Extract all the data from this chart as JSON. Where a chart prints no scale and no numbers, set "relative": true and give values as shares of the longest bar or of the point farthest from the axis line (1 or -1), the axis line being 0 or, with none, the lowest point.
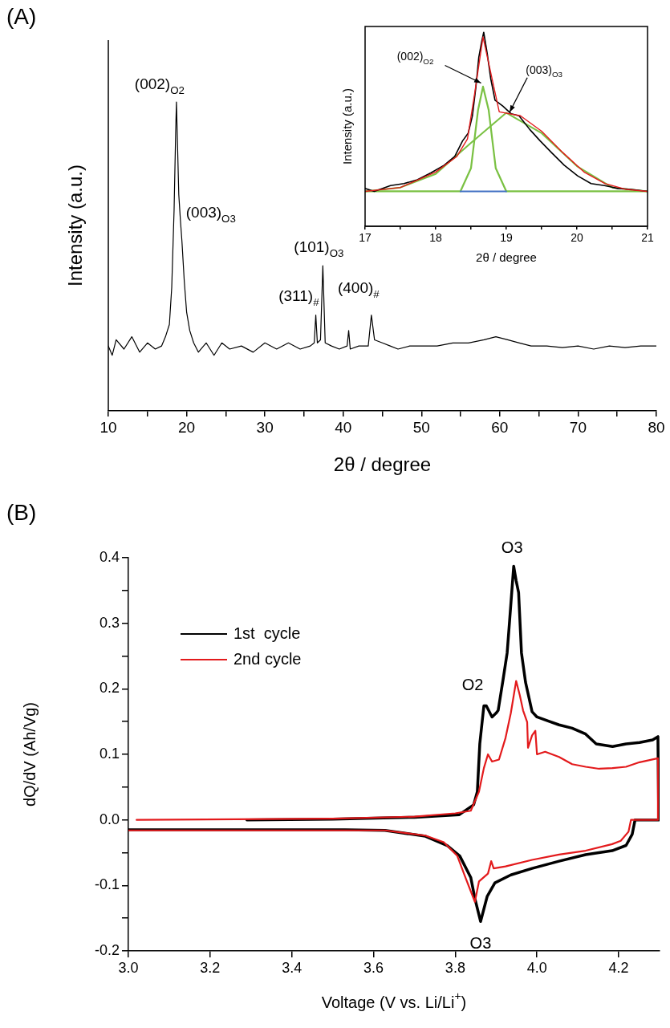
{
  "chart_data": [
    {
      "type": "line",
      "relative": true,
      "title": "(A)",
      "xlabel": "2θ / degree",
      "ylabel": "Intensity (a.u.)",
      "xlim": [
        10,
        80
      ],
      "xticks": [
        10,
        {
          "value": 15,
          "label": null
        },
        20,
        {
          "value": 25,
          "label": null
        },
        30,
        {
          "value": 35,
          "label": null
        },
        40,
        {
          "value": 45,
          "label": null
        },
        50,
        {
          "value": 55,
          "label": null
        },
        60,
        {
          "value": 65,
          "label": null
        },
        70,
        {
          "value": 75,
          "label": null
        },
        80
      ],
      "x": [
        10,
        10.5,
        11,
        12,
        13,
        14,
        15,
        16,
        16.8,
        17.3,
        17.8,
        18.1,
        18.4,
        18.6,
        18.7,
        18.85,
        19.0,
        19.2,
        19.4,
        19.7,
        20.0,
        20.4,
        20.9,
        21.5,
        22.5,
        23.5,
        24.5,
        25.5,
        27,
        28.5,
        30,
        31.5,
        33,
        34.5,
        35.8,
        36.3,
        36.5,
        36.7,
        37.1,
        37.4,
        37.7,
        38.5,
        39.5,
        40.5,
        40.7,
        40.9,
        42,
        43.2,
        43.6,
        44,
        45,
        46,
        47,
        48.5,
        50,
        52,
        54,
        56,
        58,
        59.5,
        61,
        62.5,
        64,
        66,
        68,
        70,
        72,
        74,
        76,
        78,
        80
      ],
      "series": [
        {
          "color": "#000000",
          "values": [
            0.21,
            0.18,
            0.23,
            0.2,
            0.24,
            0.19,
            0.22,
            0.2,
            0.21,
            0.24,
            0.28,
            0.4,
            0.65,
            0.9,
            1.0,
            0.85,
            0.7,
            0.62,
            0.55,
            0.42,
            0.32,
            0.26,
            0.22,
            0.19,
            0.22,
            0.18,
            0.22,
            0.2,
            0.21,
            0.19,
            0.22,
            0.2,
            0.22,
            0.2,
            0.21,
            0.22,
            0.31,
            0.22,
            0.23,
            0.47,
            0.22,
            0.21,
            0.2,
            0.21,
            0.26,
            0.2,
            0.21,
            0.21,
            0.31,
            0.23,
            0.22,
            0.21,
            0.2,
            0.21,
            0.21,
            0.21,
            0.22,
            0.22,
            0.23,
            0.24,
            0.23,
            0.22,
            0.21,
            0.21,
            0.205,
            0.21,
            0.2,
            0.21,
            0.205,
            0.21,
            0.21
          ]
        }
      ],
      "annotations": [
        {
          "text": "(002)$_{O2}$",
          "x": 18.7,
          "y": 1.0
        },
        {
          "text": "(003)$_{O3}$",
          "x": 19.3,
          "y": 0.6
        },
        {
          "text": "(101)$_{O3}$",
          "x": 37.4,
          "y": 0.47
        },
        {
          "text": "(311)$_{#}$",
          "x": 36.5,
          "y": 0.31
        },
        {
          "text": "(400)$_{#}$",
          "x": 43.6,
          "y": 0.31
        }
      ]
    },
    {
      "type": "line",
      "relative": true,
      "xlabel": "2θ / degree",
      "ylabel": "Intensity (a.u.)",
      "xlim": [
        17,
        21
      ],
      "xticks": [
        17,
        {
          "value": 17.5,
          "label": null
        },
        18,
        {
          "value": 18.5,
          "label": null
        },
        19,
        {
          "value": 19.5,
          "label": null
        },
        20,
        {
          "value": 20.5,
          "label": null
        },
        21
      ],
      "series": [
        {
          "color": "#7ac143",
          "x": [
            17,
            18.35,
            18.5,
            18.6,
            18.67,
            18.75,
            18.85,
            19.0,
            21
          ],
          "values": [
            0.18,
            0.18,
            0.3,
            0.6,
            0.72,
            0.6,
            0.3,
            0.18,
            0.18
          ]
        },
        {
          "color": "#7ac143",
          "x": [
            17,
            17.5,
            18,
            18.5,
            19,
            19.5,
            20,
            20.5,
            21
          ],
          "values": [
            0.18,
            0.2,
            0.27,
            0.43,
            0.585,
            0.48,
            0.31,
            0.2,
            0.18
          ]
        },
        {
          "color": "#4472c4",
          "x": [
            18.35,
            19.0
          ],
          "values": [
            0.18,
            0.18
          ]
        },
        {
          "color": "#000000",
          "x": [
            17.0,
            17.13,
            17.36,
            17.55,
            17.74,
            17.93,
            18.12,
            18.27,
            18.38,
            18.46,
            18.52,
            18.57,
            18.61,
            18.65,
            18.68,
            18.73,
            18.78,
            18.84,
            18.95,
            19.07,
            19.18,
            19.33,
            19.48,
            19.64,
            19.82,
            20.01,
            20.2,
            20.39,
            20.58,
            20.77,
            21.0
          ],
          "values": [
            0.195,
            0.18,
            0.21,
            0.22,
            0.24,
            0.275,
            0.315,
            0.36,
            0.44,
            0.48,
            0.57,
            0.72,
            0.87,
            0.95,
            1.0,
            0.89,
            0.76,
            0.65,
            0.62,
            0.58,
            0.57,
            0.5,
            0.44,
            0.38,
            0.315,
            0.26,
            0.22,
            0.21,
            0.195,
            0.19,
            0.18
          ]
        },
        {
          "color": "#e31a1c",
          "x": [
            17,
            17.5,
            18,
            18.3,
            18.45,
            18.55,
            18.67,
            18.9,
            19.2,
            19.5,
            19.8,
            20.1,
            20.4,
            20.7,
            21
          ],
          "values": [
            0.18,
            0.2,
            0.28,
            0.36,
            0.45,
            0.68,
            0.976,
            0.59,
            0.57,
            0.49,
            0.38,
            0.28,
            0.22,
            0.19,
            0.18
          ]
        }
      ],
      "annotations": [
        {
          "text": "(002)$_{O2}$",
          "x": 18.62,
          "y": 0.73
        },
        {
          "text": "(003)$_{O3}$",
          "x": 19.07,
          "y": 0.58
        }
      ]
    },
    {
      "type": "line",
      "title": "(B)",
      "xlabel": "Voltage (V vs. Li/Li$^{+}$)",
      "ylabel": "dQ/dV (Ah/Vg)",
      "xlim": [
        3.0,
        4.3
      ],
      "ylim": [
        -0.2,
        0.4
      ],
      "xticks": [
        {
          "value": 3.0,
          "label": "3.0"
        },
        {
          "value": 3.2,
          "label": "3.2"
        },
        {
          "value": 3.4,
          "label": "3.4"
        },
        {
          "value": 3.6,
          "label": "3.6"
        },
        {
          "value": 3.8,
          "label": "3.8"
        },
        {
          "value": 4.0,
          "label": "4.0"
        },
        {
          "value": 4.2,
          "label": "4.2"
        }
      ],
      "yticks": [
        {
          "value": -0.2,
          "label": "-0.2"
        },
        {
          "value": -0.15,
          "label": null
        },
        {
          "value": -0.1,
          "label": "-0.1"
        },
        {
          "value": -0.05,
          "label": null
        },
        {
          "value": 0,
          "label": "0.0"
        },
        {
          "value": 0.05,
          "label": null
        },
        {
          "value": 0.1,
          "label": "0.1"
        },
        {
          "value": 0.15,
          "label": null
        },
        {
          "value": 0.2,
          "label": "0.2"
        },
        {
          "value": 0.25,
          "label": null
        },
        {
          "value": 0.3,
          "label": "0.3"
        },
        {
          "value": 0.35,
          "label": null
        },
        {
          "value": 0.4,
          "label": "0.4"
        }
      ],
      "legend": "top left",
      "series": [
        {
          "name": "1st  cycle",
          "color": "#000000",
          "x": [
            3.29,
            3.5,
            3.7,
            3.81,
            3.845,
            3.854,
            3.86,
            3.87,
            3.876,
            3.89,
            3.9,
            3.905,
            3.917,
            3.927,
            3.933,
            3.943,
            3.949,
            3.955,
            3.962,
            3.972,
            3.988,
            4.0,
            4.027,
            4.054,
            4.086,
            4.119,
            4.145,
            4.185,
            4.218,
            4.251,
            4.283,
            4.296,
            4.298,
            4.24,
            4.233,
            4.218,
            4.184,
            4.119,
            4.054,
            3.988,
            3.936,
            3.897,
            3.878,
            3.862,
            3.848,
            3.838,
            3.811,
            3.78,
            3.727,
            3.628,
            3.53,
            3.0
          ],
          "values": [
            0.0,
            0.001,
            0.004,
            0.008,
            0.023,
            0.043,
            0.116,
            0.174,
            0.174,
            0.157,
            0.163,
            0.167,
            0.214,
            0.255,
            0.304,
            0.387,
            0.365,
            0.347,
            0.255,
            0.21,
            0.165,
            0.157,
            0.151,
            0.145,
            0.14,
            0.131,
            0.116,
            0.112,
            0.116,
            0.118,
            0.122,
            0.127,
            0.0,
            0.0,
            -0.022,
            -0.039,
            -0.047,
            -0.053,
            -0.063,
            -0.074,
            -0.084,
            -0.096,
            -0.117,
            -0.155,
            -0.12,
            -0.088,
            -0.055,
            -0.039,
            -0.025,
            -0.016,
            -0.015,
            -0.015
          ]
        },
        {
          "name": "2nd cycle",
          "color": "#e31a1c",
          "x": [
            3.02,
            3.5,
            3.7,
            3.8,
            3.838,
            3.858,
            3.87,
            3.88,
            3.89,
            3.907,
            3.923,
            3.936,
            3.949,
            3.958,
            3.966,
            3.976,
            3.978,
            3.988,
            3.996,
            4.0,
            4.02,
            4.054,
            4.086,
            4.119,
            4.152,
            4.185,
            4.218,
            4.251,
            4.296,
            4.296,
            4.283,
            4.23,
            4.224,
            4.205,
            4.184,
            4.119,
            4.054,
            3.988,
            3.923,
            3.894,
            3.888,
            3.88,
            3.858,
            3.848,
            3.825,
            3.805,
            3.772,
            3.727,
            3.628,
            3.0
          ],
          "values": [
            0.0,
            0.002,
            0.005,
            0.01,
            0.014,
            0.043,
            0.079,
            0.1,
            0.089,
            0.092,
            0.125,
            0.163,
            0.212,
            0.19,
            0.167,
            0.149,
            0.11,
            0.129,
            0.136,
            0.1,
            0.104,
            0.096,
            0.085,
            0.081,
            0.078,
            0.079,
            0.081,
            0.088,
            0.094,
            0.0,
            0.0,
            0.0,
            -0.018,
            -0.032,
            -0.037,
            -0.047,
            -0.053,
            -0.061,
            -0.071,
            -0.074,
            -0.063,
            -0.082,
            -0.094,
            -0.125,
            -0.088,
            -0.055,
            -0.034,
            -0.024,
            -0.016,
            -0.016
          ]
        }
      ],
      "annotations": [
        {
          "text": "O3",
          "x": 3.943,
          "y": 0.387
        },
        {
          "text": "O2",
          "x": 3.874,
          "y": 0.174
        },
        {
          "text": "O3",
          "x": 3.862,
          "y": -0.155
        }
      ]
    }
  ]
}
